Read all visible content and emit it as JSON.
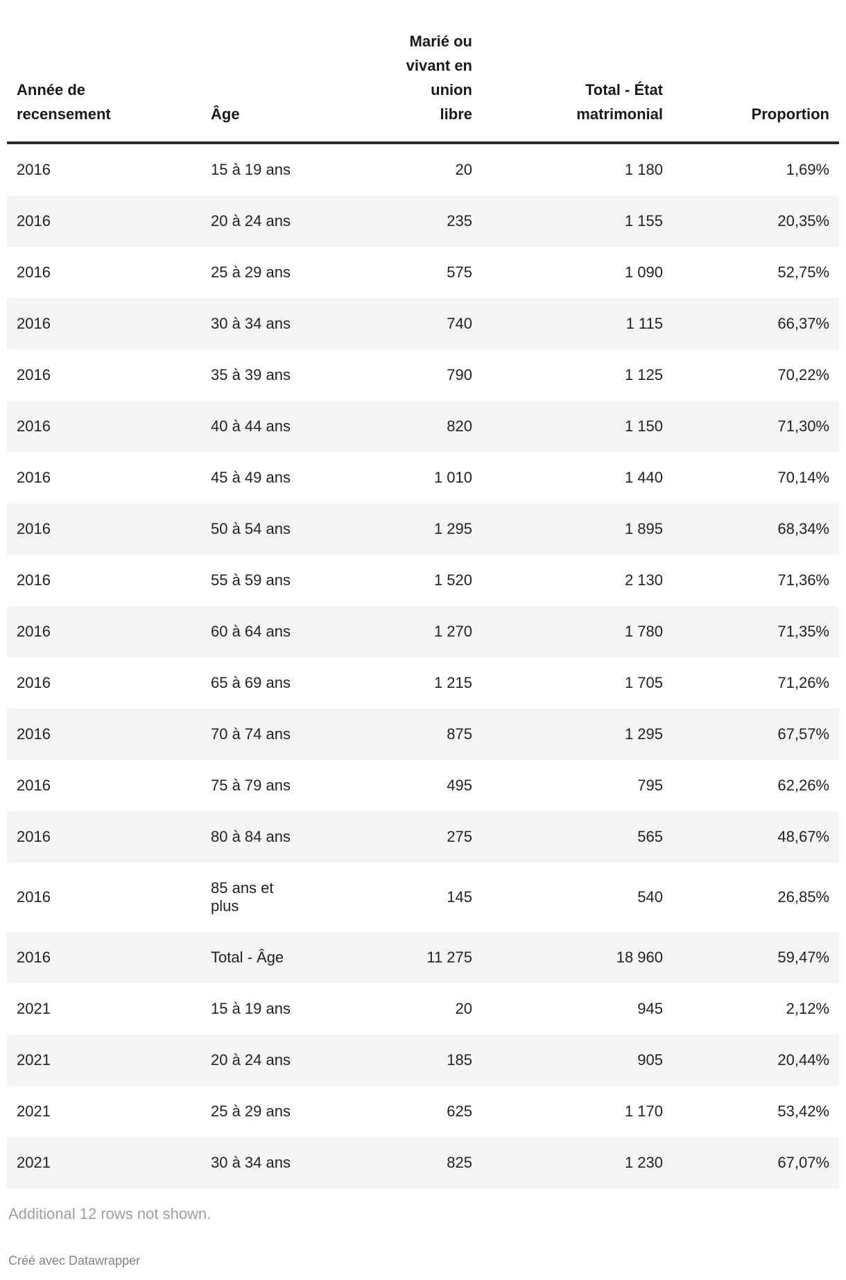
{
  "chart_data": {
    "type": "table",
    "columns": [
      {
        "key": "year",
        "label": "Année de recensement",
        "display_label": "Année de\nrecensement",
        "align": "left"
      },
      {
        "key": "age",
        "label": "Âge",
        "display_label": "Âge",
        "align": "left"
      },
      {
        "key": "married",
        "label": "Marié ou vivant en union libre",
        "display_label": "Marié ou\nvivant en\nunion\nlibre",
        "align": "right"
      },
      {
        "key": "total",
        "label": "Total - État matrimonial",
        "display_label": "Total - État\nmatrimonial",
        "align": "right"
      },
      {
        "key": "proportion",
        "label": "Proportion",
        "display_label": "Proportion",
        "align": "right"
      }
    ],
    "rows": [
      [
        "2016",
        "15 à 19 ans",
        "20",
        "1 180",
        "1,69%"
      ],
      [
        "2016",
        "20 à 24 ans",
        "235",
        "1 155",
        "20,35%"
      ],
      [
        "2016",
        "25 à 29 ans",
        "575",
        "1 090",
        "52,75%"
      ],
      [
        "2016",
        "30 à 34 ans",
        "740",
        "1 115",
        "66,37%"
      ],
      [
        "2016",
        "35 à 39 ans",
        "790",
        "1 125",
        "70,22%"
      ],
      [
        "2016",
        "40 à 44 ans",
        "820",
        "1 150",
        "71,30%"
      ],
      [
        "2016",
        "45 à 49 ans",
        "1 010",
        "1 440",
        "70,14%"
      ],
      [
        "2016",
        "50 à 54 ans",
        "1 295",
        "1 895",
        "68,34%"
      ],
      [
        "2016",
        "55 à 59 ans",
        "1 520",
        "2 130",
        "71,36%"
      ],
      [
        "2016",
        "60 à 64 ans",
        "1 270",
        "1 780",
        "71,35%"
      ],
      [
        "2016",
        "65 à 69 ans",
        "1 215",
        "1 705",
        "71,26%"
      ],
      [
        "2016",
        "70 à 74 ans",
        "875",
        "1 295",
        "67,57%"
      ],
      [
        "2016",
        "75 à 79 ans",
        "495",
        "795",
        "62,26%"
      ],
      [
        "2016",
        "80 à 84 ans",
        "275",
        "565",
        "48,67%"
      ],
      [
        "2016",
        "85 ans et\nplus",
        "145",
        "540",
        "26,85%"
      ],
      [
        "2016",
        "Total - Âge",
        "11 275",
        "18 960",
        "59,47%"
      ],
      [
        "2021",
        "15 à 19 ans",
        "20",
        "945",
        "2,12%"
      ],
      [
        "2021",
        "20 à 24 ans",
        "185",
        "905",
        "20,44%"
      ],
      [
        "2021",
        "25 à 29 ans",
        "625",
        "1 170",
        "53,42%"
      ],
      [
        "2021",
        "30 à 34 ans",
        "825",
        "1 230",
        "67,07%"
      ]
    ],
    "note": "Additional 12 rows not shown.",
    "credit": "Créé avec Datawrapper",
    "layout_hints": {
      "striped_rows": true,
      "header_rule": true
    }
  },
  "colors": {
    "header_text": "#1a1a1a",
    "body_text": "#222222",
    "header_border": "#2b2b2b",
    "row_stripe": "#f4f4f4",
    "note_text": "#9e9e9e",
    "credit_text": "#848484",
    "background": "#ffffff"
  }
}
